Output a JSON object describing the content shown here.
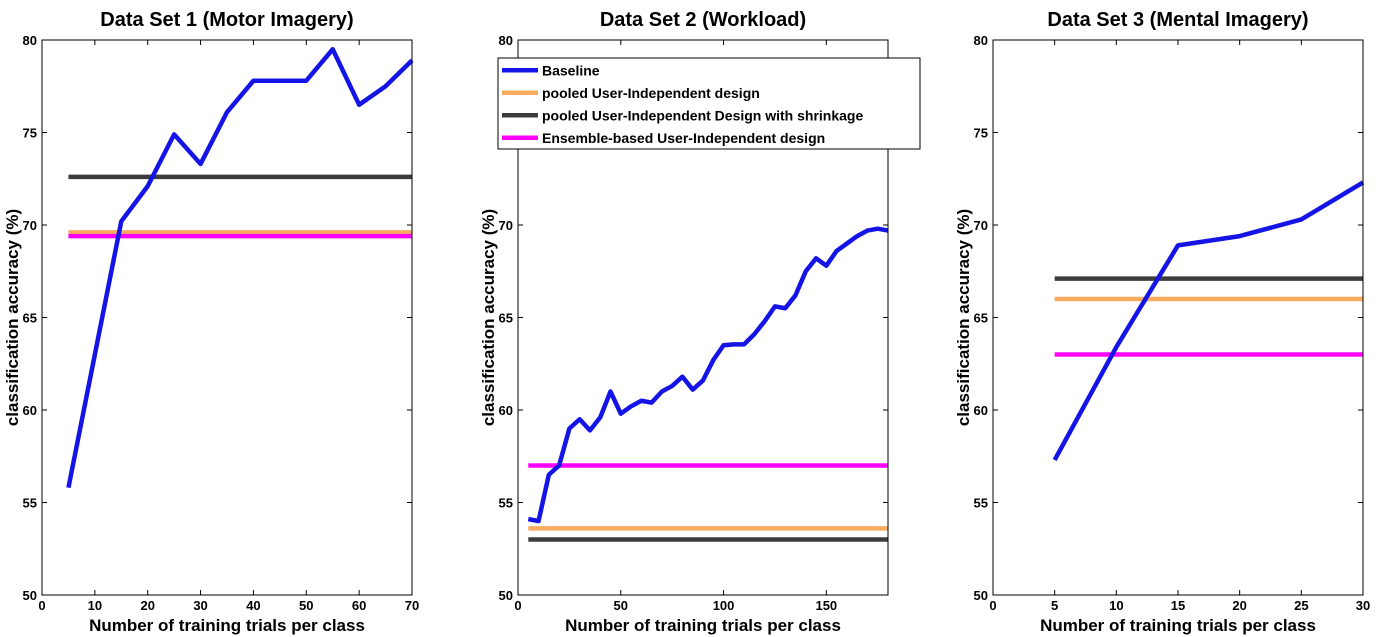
{
  "chart_data": [
    {
      "type": "line",
      "title": "Data Set 1 (Motor Imagery)",
      "x_label": "Number of training trials per class",
      "y_label": "classification accuracy (%)",
      "x": [
        5,
        10,
        15,
        20,
        25,
        30,
        35,
        40,
        45,
        50,
        55,
        60,
        65,
        70
      ],
      "series": [
        {
          "color": "#1414e6",
          "values": [
            55.8,
            63.0,
            70.2,
            72.1,
            74.9,
            73.3,
            76.1,
            77.8,
            77.8,
            77.8,
            79.5,
            76.5,
            77.5,
            78.9
          ]
        },
        {
          "color": "#f7ac60",
          "values": [
            69.6,
            69.6,
            69.6,
            69.6,
            69.6,
            69.6,
            69.6,
            69.6,
            69.6,
            69.6,
            69.6,
            69.6,
            69.6,
            69.6
          ]
        },
        {
          "color": "#3c3c3c",
          "values": [
            72.6,
            72.6,
            72.6,
            72.6,
            72.6,
            72.6,
            72.6,
            72.6,
            72.6,
            72.6,
            72.6,
            72.6,
            72.6,
            72.6
          ]
        },
        {
          "color": "#ff00ff",
          "values": [
            69.4,
            69.4,
            69.4,
            69.4,
            69.4,
            69.4,
            69.4,
            69.4,
            69.4,
            69.4,
            69.4,
            69.4,
            69.4,
            69.4
          ]
        }
      ],
      "xlim": [
        0,
        70
      ],
      "xticks": [
        0,
        10,
        20,
        30,
        40,
        50,
        60,
        70
      ],
      "ylim": [
        50,
        80
      ],
      "yticks": [
        50,
        55,
        60,
        65,
        70,
        75,
        80
      ]
    },
    {
      "type": "line",
      "title": "Data Set 2 (Workload)",
      "x_label": "Number of training trials per class",
      "y_label": "classification accuracy (%)",
      "x": [
        5,
        10,
        15,
        20,
        25,
        30,
        35,
        40,
        45,
        50,
        55,
        60,
        65,
        70,
        75,
        80,
        85,
        90,
        95,
        100,
        105,
        110,
        115,
        120,
        125,
        130,
        135,
        140,
        145,
        150,
        155,
        160,
        165,
        170,
        175,
        180
      ],
      "series": [
        {
          "name": "Baseline",
          "color": "#1414e6",
          "values": [
            54.1,
            54.0,
            56.5,
            57.0,
            59.0,
            59.5,
            58.9,
            59.6,
            61.0,
            59.8,
            60.2,
            60.5,
            60.4,
            61.0,
            61.3,
            61.8,
            61.1,
            61.6,
            62.7,
            63.5,
            63.55,
            63.55,
            64.1,
            64.8,
            65.6,
            65.5,
            66.2,
            67.5,
            68.2,
            67.8,
            68.6,
            69.0,
            69.4,
            69.7,
            69.8,
            69.7
          ]
        },
        {
          "name": "pooled User-Independent design",
          "color": "#f7ac60",
          "values": [
            53.6,
            53.6,
            53.6,
            53.6,
            53.6,
            53.6,
            53.6,
            53.6,
            53.6,
            53.6,
            53.6,
            53.6,
            53.6,
            53.6,
            53.6,
            53.6,
            53.6,
            53.6,
            53.6,
            53.6,
            53.6,
            53.6,
            53.6,
            53.6,
            53.6,
            53.6,
            53.6,
            53.6,
            53.6,
            53.6,
            53.6,
            53.6,
            53.6,
            53.6,
            53.6,
            53.6
          ]
        },
        {
          "name": "pooled User-Independent Design with shrinkage",
          "color": "#3c3c3c",
          "values": [
            53.0,
            53.0,
            53.0,
            53.0,
            53.0,
            53.0,
            53.0,
            53.0,
            53.0,
            53.0,
            53.0,
            53.0,
            53.0,
            53.0,
            53.0,
            53.0,
            53.0,
            53.0,
            53.0,
            53.0,
            53.0,
            53.0,
            53.0,
            53.0,
            53.0,
            53.0,
            53.0,
            53.0,
            53.0,
            53.0,
            53.0,
            53.0,
            53.0,
            53.0,
            53.0,
            53.0
          ]
        },
        {
          "name": "Ensemble-based User-Independent design",
          "color": "#ff00ff",
          "values": [
            57.0,
            57.0,
            57.0,
            57.0,
            57.0,
            57.0,
            57.0,
            57.0,
            57.0,
            57.0,
            57.0,
            57.0,
            57.0,
            57.0,
            57.0,
            57.0,
            57.0,
            57.0,
            57.0,
            57.0,
            57.0,
            57.0,
            57.0,
            57.0,
            57.0,
            57.0,
            57.0,
            57.0,
            57.0,
            57.0,
            57.0,
            57.0,
            57.0,
            57.0,
            57.0,
            57.0
          ]
        }
      ],
      "legend": "upper left",
      "xlim": [
        0,
        180
      ],
      "xticks": [
        0,
        50,
        100,
        150
      ],
      "ylim": [
        50,
        80
      ],
      "yticks": [
        50,
        55,
        60,
        65,
        70,
        75,
        80
      ]
    },
    {
      "type": "line",
      "title": "Data Set 3 (Mental Imagery)",
      "x_label": "Number of training trials per class",
      "y_label": "classification accuracy (%)",
      "x": [
        5,
        10,
        15,
        20,
        25,
        30
      ],
      "series": [
        {
          "color": "#1414e6",
          "values": [
            57.3,
            63.4,
            68.9,
            69.4,
            70.3,
            72.3
          ]
        },
        {
          "color": "#f7ac60",
          "values": [
            66.0,
            66.0,
            66.0,
            66.0,
            66.0,
            66.0
          ]
        },
        {
          "color": "#3c3c3c",
          "values": [
            67.1,
            67.1,
            67.1,
            67.1,
            67.1,
            67.1
          ]
        },
        {
          "color": "#ff00ff",
          "values": [
            63.0,
            63.0,
            63.0,
            63.0,
            63.0,
            63.0
          ]
        }
      ],
      "xlim": [
        0,
        30
      ],
      "xticks": [
        0,
        5,
        10,
        15,
        20,
        25,
        30
      ],
      "ylim": [
        50,
        80
      ],
      "yticks": [
        50,
        55,
        60,
        65,
        70,
        75,
        80
      ]
    }
  ]
}
